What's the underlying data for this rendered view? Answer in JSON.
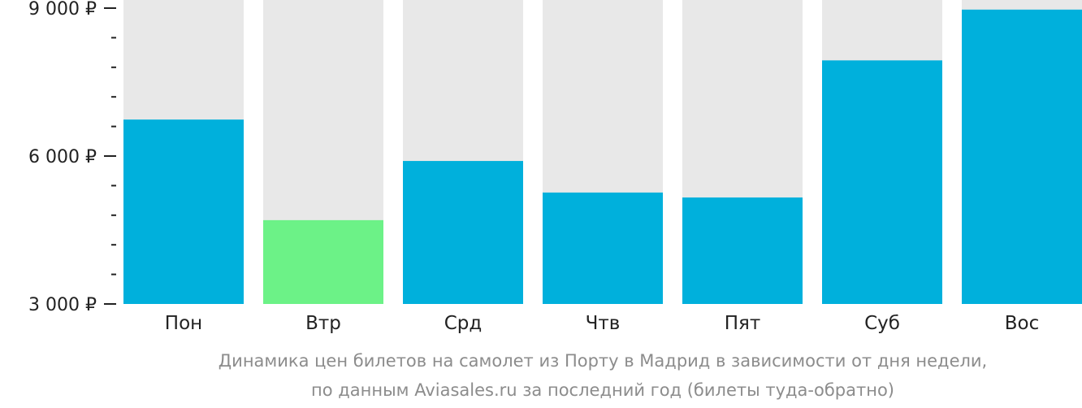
{
  "chart_data": {
    "type": "bar",
    "categories": [
      "Пон",
      "Втр",
      "Срд",
      "Чтв",
      "Пят",
      "Суб",
      "Вос"
    ],
    "values": [
      6740,
      4700,
      5900,
      5260,
      5160,
      7940,
      8970
    ],
    "highlight_index": 1,
    "ylim": [
      3000,
      9000
    ],
    "yticks": [
      3000,
      6000,
      9000
    ],
    "ytick_labels": [
      "3 000 ₽",
      "6 000 ₽",
      "9 000 ₽"
    ],
    "minor_tick_step": 600,
    "title": "Динамика цен билетов на самолет из Порту в Мадрид в зависимости от дня недели,",
    "subtitle": "по данным Aviasales.ru за последний год (билеты туда-обратно)",
    "xlabel": "",
    "ylabel": "",
    "grid": false,
    "colors": {
      "bar": "#00b0dc",
      "highlight": "#6cf287",
      "background_track": "#e8e8e8",
      "axis": "#222222",
      "caption": "#8c8c8c"
    }
  }
}
